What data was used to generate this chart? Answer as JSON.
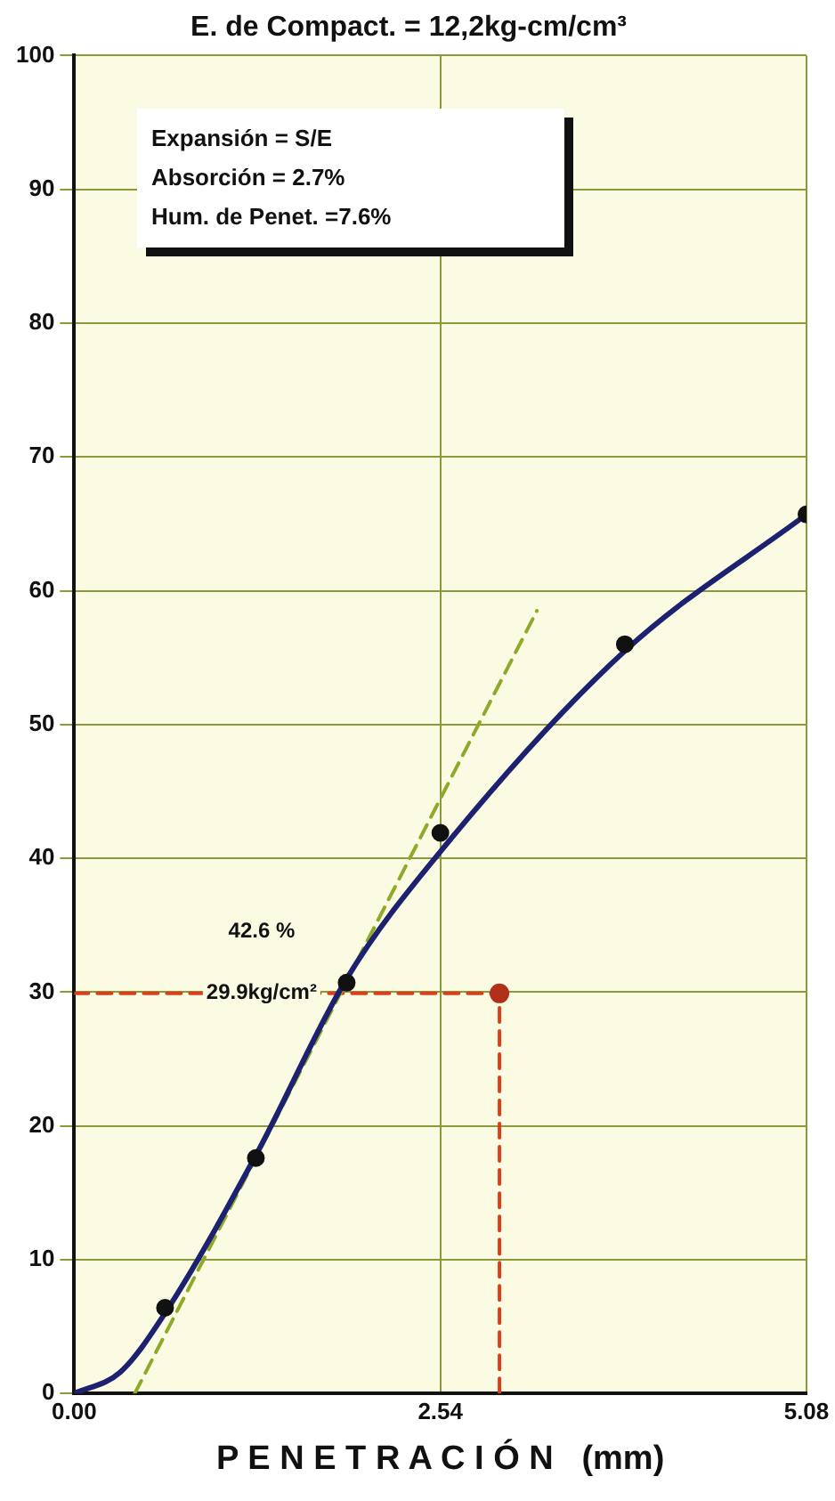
{
  "chart_data": {
    "type": "line",
    "title": "E. de Compact. = 12,2kg-cm/cm³",
    "xlabel": "P E N E T R A C I Ó N   (mm)",
    "xlim": [
      0,
      5.08
    ],
    "xticks": [
      {
        "value": 0,
        "label": "0.00"
      },
      {
        "value": 2.54,
        "label": "2.54"
      },
      {
        "value": 5.08,
        "label": "5.08"
      }
    ],
    "ylim": [
      0,
      100
    ],
    "yticks": [
      0,
      10,
      20,
      30,
      40,
      50,
      60,
      70,
      80,
      90,
      100
    ],
    "grid": true,
    "legend": false,
    "series": [
      {
        "color": "#1c2270",
        "x": [
          0,
          0.32,
          0.63,
          1.26,
          1.89,
          2.54,
          3.82,
          5.08
        ],
        "values": [
          0,
          1.6,
          6,
          17.8,
          31,
          40.5,
          55.5,
          65.7
        ],
        "marker": "none",
        "line_style": "solid"
      },
      {
        "type": "scatter",
        "color": "#111111",
        "x": [
          0.63,
          1.26,
          1.89,
          2.54,
          3.82,
          5.08
        ],
        "values": [
          6.4,
          17.6,
          30.7,
          41.9,
          56,
          65.7
        ],
        "marker": "circle"
      },
      {
        "type": "line",
        "color": "#8faa2a",
        "x": [
          0.42,
          3.21
        ],
        "values": [
          0,
          58.5
        ],
        "marker": "none",
        "line_style": "dashed"
      },
      {
        "type": "line",
        "color": "#d9401a",
        "x": [
          0,
          2.95,
          2.95
        ],
        "values": [
          29.9,
          29.9,
          0
        ],
        "marker": "none",
        "line_style": "dashed"
      },
      {
        "type": "scatter",
        "color": "#b0301a",
        "x": [
          2.95
        ],
        "values": [
          29.9
        ],
        "marker": "circle"
      }
    ],
    "annotations": [
      "Expansión = S/E",
      "Absorción = 2.7%",
      "Hum. de Penet. =7.6%",
      {
        "text": "42.6 %",
        "x": 1.3,
        "y": 34.5
      },
      {
        "text": "29.9kg/cm²",
        "x": 1.3,
        "y": 29.9
      }
    ]
  }
}
